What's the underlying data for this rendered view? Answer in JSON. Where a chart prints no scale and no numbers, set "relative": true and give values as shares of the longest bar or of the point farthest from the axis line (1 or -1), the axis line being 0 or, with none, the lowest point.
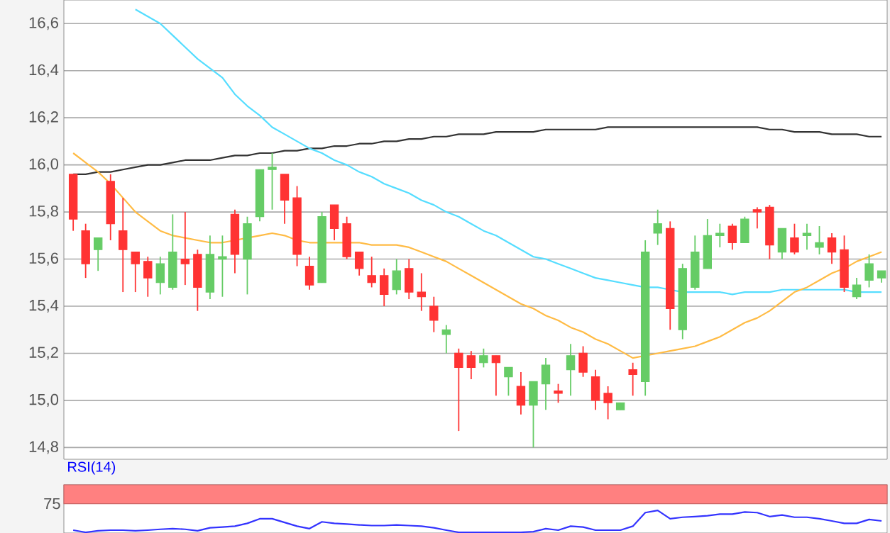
{
  "chart_data": [
    {
      "type": "candlestick",
      "categories": [
        null,
        null,
        null,
        null,
        null,
        null,
        null,
        null,
        null,
        null,
        null,
        null,
        null,
        null,
        null,
        null,
        null,
        null,
        null,
        null,
        null,
        null,
        null,
        null,
        null,
        null,
        null,
        null,
        null,
        null,
        null,
        null,
        null,
        null,
        null,
        null,
        null,
        null,
        null,
        null,
        null,
        null,
        null,
        null,
        null,
        null,
        null,
        null,
        null,
        null,
        null,
        null,
        null,
        null,
        null,
        null,
        null,
        null,
        null,
        null,
        null,
        null,
        null,
        null,
        null,
        null
      ],
      "ohlc": [
        [
          15.96,
          15.96,
          15.72,
          15.77
        ],
        [
          15.72,
          15.75,
          15.52,
          15.58
        ],
        [
          15.64,
          15.69,
          15.55,
          15.69
        ],
        [
          15.93,
          15.96,
          15.68,
          15.75
        ],
        [
          15.72,
          15.86,
          15.46,
          15.64
        ],
        [
          15.63,
          15.63,
          15.46,
          15.58
        ],
        [
          15.59,
          15.61,
          15.44,
          15.52
        ],
        [
          15.5,
          15.61,
          15.45,
          15.58
        ],
        [
          15.48,
          15.79,
          15.47,
          15.63
        ],
        [
          15.6,
          15.8,
          15.49,
          15.58
        ],
        [
          15.62,
          15.64,
          15.38,
          15.48
        ],
        [
          15.46,
          15.7,
          15.43,
          15.62
        ],
        [
          15.6,
          15.7,
          15.44,
          15.61
        ],
        [
          15.79,
          15.81,
          15.54,
          15.62
        ],
        [
          15.6,
          15.78,
          15.45,
          15.75
        ],
        [
          15.78,
          15.98,
          15.76,
          15.98
        ],
        [
          15.98,
          16.05,
          15.81,
          15.99
        ],
        [
          15.96,
          15.96,
          15.75,
          15.85
        ],
        [
          15.86,
          15.91,
          15.57,
          15.62
        ],
        [
          15.57,
          15.61,
          15.47,
          15.49
        ],
        [
          15.5,
          15.8,
          15.5,
          15.78
        ],
        [
          15.83,
          15.83,
          15.68,
          15.73
        ],
        [
          15.75,
          15.78,
          15.6,
          15.61
        ],
        [
          15.63,
          15.63,
          15.53,
          15.56
        ],
        [
          15.53,
          15.61,
          15.48,
          15.5
        ],
        [
          15.53,
          15.56,
          15.4,
          15.45
        ],
        [
          15.47,
          15.6,
          15.45,
          15.55
        ],
        [
          15.56,
          15.6,
          15.43,
          15.46
        ],
        [
          15.46,
          15.54,
          15.38,
          15.44
        ],
        [
          15.4,
          15.44,
          15.29,
          15.34
        ],
        [
          15.28,
          15.32,
          15.2,
          15.3
        ],
        [
          15.2,
          15.22,
          14.87,
          15.14
        ],
        [
          15.19,
          15.21,
          15.09,
          15.14
        ],
        [
          15.16,
          15.22,
          15.14,
          15.19
        ],
        [
          15.19,
          15.19,
          15.02,
          15.16
        ],
        [
          15.1,
          15.14,
          15.02,
          15.14
        ],
        [
          15.06,
          15.12,
          14.94,
          14.98
        ],
        [
          14.98,
          15.08,
          14.8,
          15.08
        ],
        [
          15.07,
          15.18,
          14.96,
          15.15
        ],
        [
          15.04,
          15.07,
          14.99,
          15.03
        ],
        [
          15.13,
          15.24,
          15.02,
          15.19
        ],
        [
          15.2,
          15.23,
          15.1,
          15.12
        ],
        [
          15.1,
          15.13,
          14.96,
          15.0
        ],
        [
          15.03,
          15.06,
          14.92,
          14.99
        ],
        [
          14.96,
          14.99,
          14.96,
          14.99
        ],
        [
          15.13,
          15.16,
          15.02,
          15.11
        ],
        [
          15.08,
          15.68,
          15.02,
          15.63
        ],
        [
          15.71,
          15.81,
          15.66,
          15.75
        ],
        [
          15.73,
          15.76,
          15.3,
          15.39
        ],
        [
          15.3,
          15.58,
          15.26,
          15.56
        ],
        [
          15.48,
          15.7,
          15.47,
          15.63
        ],
        [
          15.56,
          15.77,
          15.56,
          15.7
        ],
        [
          15.7,
          15.75,
          15.65,
          15.71
        ],
        [
          15.74,
          15.75,
          15.64,
          15.67
        ],
        [
          15.67,
          15.78,
          15.67,
          15.77
        ],
        [
          15.81,
          15.82,
          15.73,
          15.8
        ],
        [
          15.82,
          15.83,
          15.6,
          15.66
        ],
        [
          15.63,
          15.73,
          15.6,
          15.73
        ],
        [
          15.69,
          15.75,
          15.62,
          15.63
        ],
        [
          15.7,
          15.75,
          15.64,
          15.71
        ],
        [
          15.65,
          15.74,
          15.62,
          15.67
        ],
        [
          15.69,
          15.71,
          15.58,
          15.63
        ],
        [
          15.64,
          15.7,
          15.46,
          15.48
        ],
        [
          15.44,
          15.52,
          15.43,
          15.49
        ],
        [
          15.51,
          15.62,
          15.48,
          15.58
        ],
        [
          15.52,
          15.55,
          15.5,
          15.55
        ]
      ],
      "colors": [
        "#ff3333",
        "#ff3333",
        "#66cc66",
        "#ff3333",
        "#ff3333",
        "#ff3333",
        "#ff3333",
        "#66cc66",
        "#66cc66",
        "#ff3333",
        "#ff3333",
        "#66cc66",
        "#66cc66",
        "#ff3333",
        "#66cc66",
        "#66cc66",
        "#66cc66",
        "#ff3333",
        "#ff3333",
        "#ff3333",
        "#66cc66",
        "#ff3333",
        "#ff3333",
        "#ff3333",
        "#ff3333",
        "#ff3333",
        "#66cc66",
        "#ff3333",
        "#ff3333",
        "#ff3333",
        "#66cc66",
        "#ff3333",
        "#ff3333",
        "#66cc66",
        "#ff3333",
        "#66cc66",
        "#ff3333",
        "#66cc66",
        "#66cc66",
        "#ff3333",
        "#66cc66",
        "#ff3333",
        "#ff3333",
        "#ff3333",
        "#66cc66",
        "#ff3333",
        "#66cc66",
        "#66cc66",
        "#ff3333",
        "#66cc66",
        "#66cc66",
        "#66cc66",
        "#66cc66",
        "#ff3333",
        "#66cc66",
        "#ff3333",
        "#ff3333",
        "#66cc66",
        "#ff3333",
        "#66cc66",
        "#66cc66",
        "#ff3333",
        "#ff3333",
        "#66cc66",
        "#66cc66",
        "#66cc66"
      ],
      "series": [
        {
          "type": "line",
          "color": "#333333",
          "values": [
            15.96,
            15.96,
            15.97,
            15.97,
            15.98,
            15.99,
            16.0,
            16.0,
            16.01,
            16.02,
            16.02,
            16.02,
            16.03,
            16.04,
            16.04,
            16.05,
            16.05,
            16.06,
            16.06,
            16.07,
            16.07,
            16.08,
            16.08,
            16.09,
            16.09,
            16.1,
            16.1,
            16.11,
            16.11,
            16.12,
            16.12,
            16.13,
            16.13,
            16.13,
            16.14,
            16.14,
            16.14,
            16.14,
            16.15,
            16.15,
            16.15,
            16.15,
            16.15,
            16.16,
            16.16,
            16.16,
            16.16,
            16.16,
            16.16,
            16.16,
            16.16,
            16.16,
            16.16,
            16.16,
            16.16,
            16.16,
            16.15,
            16.15,
            16.14,
            16.14,
            16.14,
            16.13,
            16.13,
            16.13,
            16.12,
            16.12
          ]
        },
        {
          "type": "line",
          "color": "#55ddff",
          "values": [
            null,
            null,
            null,
            null,
            null,
            16.66,
            16.63,
            16.6,
            16.55,
            16.5,
            16.45,
            16.41,
            16.37,
            16.3,
            16.25,
            16.21,
            16.16,
            16.13,
            16.1,
            16.07,
            16.05,
            16.02,
            16.0,
            15.97,
            15.95,
            15.92,
            15.9,
            15.88,
            15.85,
            15.83,
            15.8,
            15.78,
            15.75,
            15.72,
            15.7,
            15.67,
            15.64,
            15.61,
            15.6,
            15.58,
            15.56,
            15.54,
            15.52,
            15.51,
            15.5,
            15.49,
            15.48,
            15.48,
            15.47,
            15.46,
            15.46,
            15.46,
            15.46,
            15.45,
            15.46,
            15.46,
            15.46,
            15.47,
            15.47,
            15.47,
            15.47,
            15.47,
            15.47,
            15.46,
            15.46,
            15.46
          ]
        },
        {
          "type": "line",
          "color": "#ffbb44",
          "values": [
            16.05,
            16.01,
            15.97,
            15.92,
            15.86,
            15.8,
            15.76,
            15.72,
            15.7,
            15.69,
            15.68,
            15.67,
            15.67,
            15.68,
            15.69,
            15.7,
            15.71,
            15.7,
            15.68,
            15.67,
            15.67,
            15.67,
            15.67,
            15.67,
            15.66,
            15.66,
            15.66,
            15.65,
            15.63,
            15.61,
            15.59,
            15.56,
            15.53,
            15.5,
            15.47,
            15.44,
            15.41,
            15.39,
            15.36,
            15.34,
            15.31,
            15.29,
            15.26,
            15.24,
            15.21,
            15.18,
            15.19,
            15.2,
            15.21,
            15.22,
            15.23,
            15.25,
            15.27,
            15.3,
            15.33,
            15.35,
            15.38,
            15.42,
            15.46,
            15.48,
            15.51,
            15.54,
            15.56,
            15.59,
            15.61,
            15.63
          ]
        }
      ],
      "ylim": [
        14.75,
        16.7
      ],
      "yticks": [
        {
          "value": 14.8,
          "label": "14,8"
        },
        {
          "value": 15.0,
          "label": "15,0"
        },
        {
          "value": 15.2,
          "label": "15,2"
        },
        {
          "value": 15.4,
          "label": "15,4"
        },
        {
          "value": 15.6,
          "label": "15,6"
        },
        {
          "value": 15.8,
          "label": "15,8"
        },
        {
          "value": 16.0,
          "label": "16,0"
        },
        {
          "value": 16.2,
          "label": "16,2"
        },
        {
          "value": 16.4,
          "label": "16,4"
        },
        {
          "value": 16.6,
          "label": "16,6"
        }
      ],
      "grid": "y",
      "tick_labels": "y"
    },
    {
      "type": "line",
      "title": "RSI(14)",
      "categories": [
        null,
        null,
        null,
        null,
        null,
        null,
        null,
        null,
        null,
        null,
        null,
        null,
        null,
        null,
        null,
        null,
        null,
        null,
        null,
        null,
        null,
        null,
        null,
        null,
        null,
        null,
        null,
        null,
        null,
        null,
        null,
        null,
        null,
        null,
        null,
        null,
        null,
        null,
        null,
        null,
        null,
        null,
        null,
        null,
        null,
        null,
        null,
        null,
        null,
        null,
        null,
        null,
        null,
        null,
        null,
        null,
        null,
        null,
        null,
        null,
        null,
        null,
        null,
        null,
        null,
        null
      ],
      "series": [
        {
          "color": "#3333ff",
          "values": [
            0.1,
            0,
            0.07,
            0.1,
            0.1,
            0.07,
            0.1,
            0.14,
            0.17,
            0.14,
            0.07,
            0.21,
            0.24,
            0.28,
            0.41,
            0.62,
            0.62,
            0.45,
            0.28,
            0.17,
            0.48,
            0.41,
            0.38,
            0.34,
            0.31,
            0.31,
            0.34,
            0.31,
            0.28,
            0.21,
            0.1,
            0,
            0,
            0,
            0,
            0,
            0,
            0.03,
            0.17,
            0.1,
            0.28,
            0.24,
            0.1,
            0.1,
            0.1,
            0.28,
            0.9,
            1,
            0.62,
            0.69,
            0.72,
            0.76,
            0.83,
            0.83,
            0.93,
            0.9,
            0.72,
            0.79,
            0.69,
            0.69,
            0.62,
            0.52,
            0.41,
            0.41,
            0.59,
            0.52
          ]
        }
      ],
      "relative": true,
      "bands": [
        {
          "axis": "y",
          "from": 1.31,
          "to": 2.17,
          "color": "#ff8080"
        }
      ],
      "annotations": [
        "75"
      ]
    }
  ]
}
